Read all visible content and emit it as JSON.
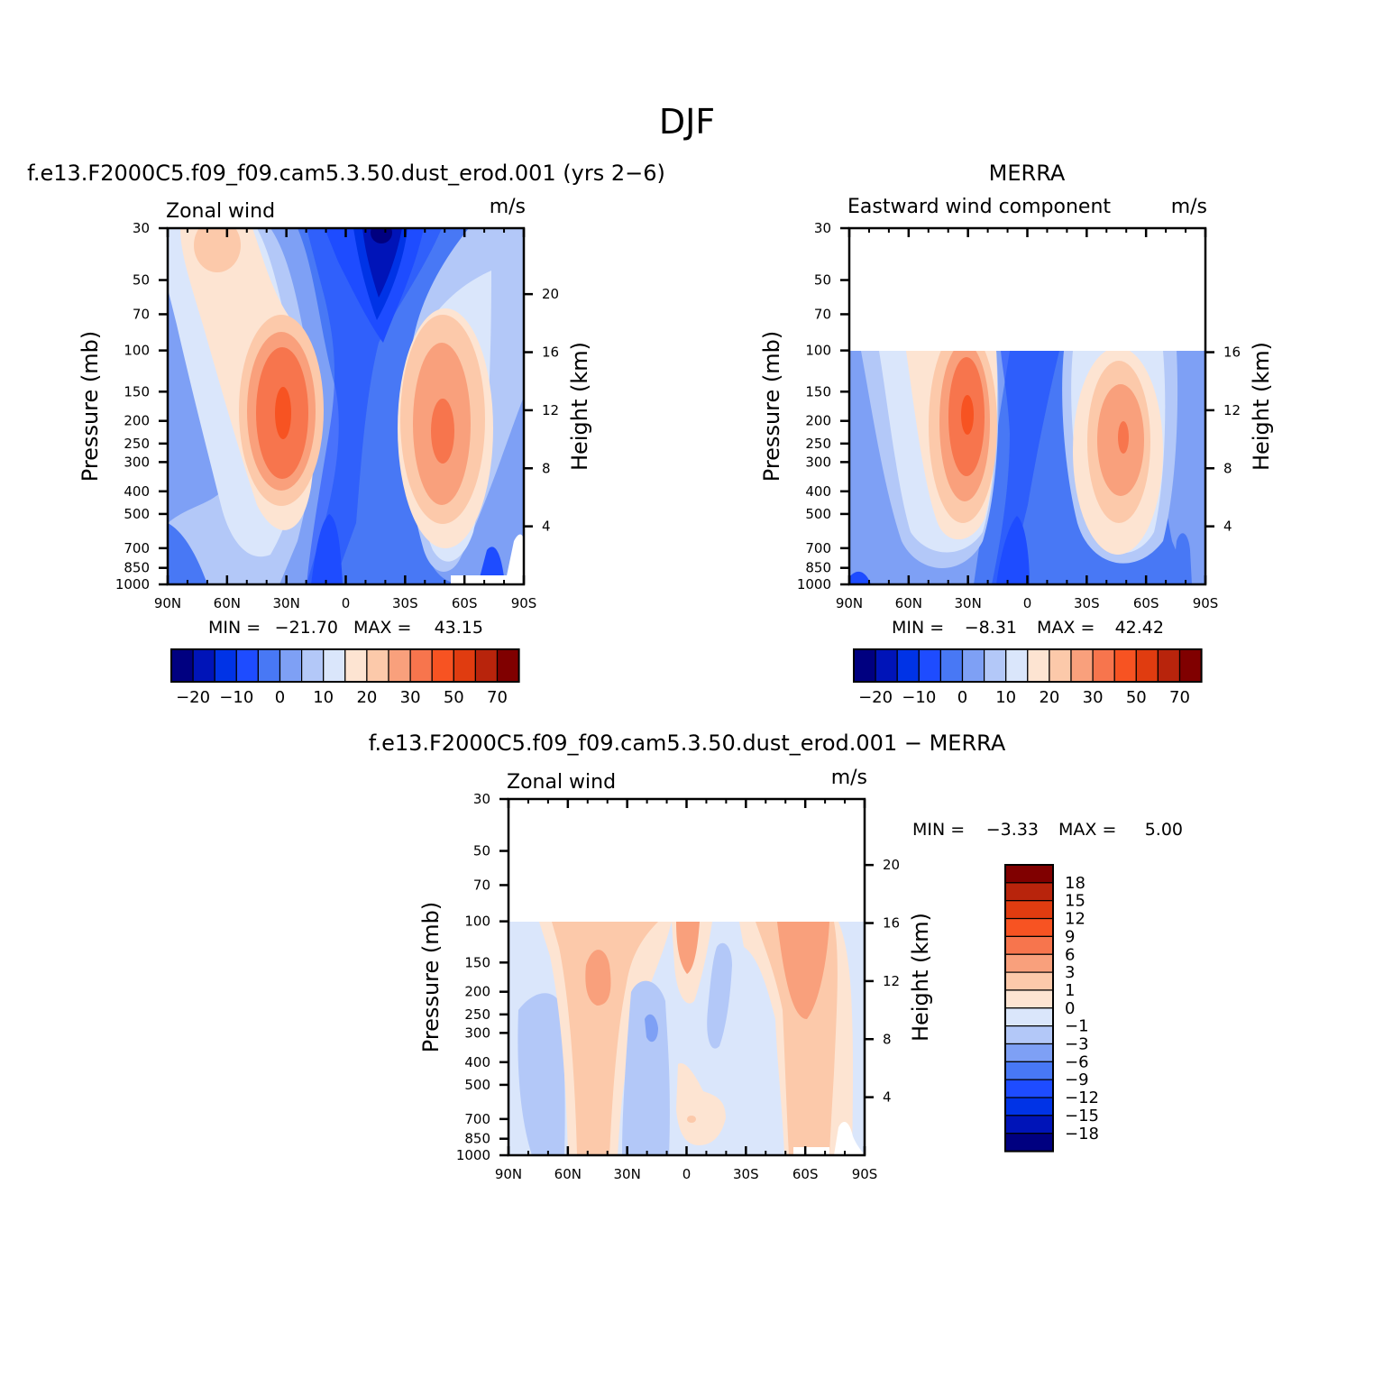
{
  "page": {
    "title": "DJF"
  },
  "colors": {
    "blues": [
      "#000080",
      "#0014b8",
      "#0033e6",
      "#1e4cff",
      "#4878f5",
      "#7ea0f5",
      "#b3c8f8",
      "#dae6fb"
    ],
    "reds": [
      "#fde4d2",
      "#fcc9aa",
      "#f9a07c",
      "#f7754d",
      "#f75322",
      "#e03c10",
      "#b8240c",
      "#800000"
    ]
  },
  "chart_data": [
    {
      "type": "heatmap",
      "panel_title": "f.e13.F2000C5.f09_f09.cam5.3.50.dust_erod.001 (yrs 2−6)",
      "left_string": "Zonal wind",
      "right_string": "m/s",
      "ylabel": "Pressure (mb)",
      "ylabel_right": "Height (km)",
      "x_ticks": [
        "90N",
        "60N",
        "30N",
        "0",
        "30S",
        "60S",
        "90S"
      ],
      "x_range": [
        90,
        -90
      ],
      "y_ticks": [
        "30",
        "50",
        "70",
        "100",
        "150",
        "200",
        "250",
        "300",
        "400",
        "500",
        "700",
        "850",
        "1000"
      ],
      "y_range_mb": [
        1000,
        30
      ],
      "height_ticks_km": [
        "20",
        "16",
        "12",
        "8",
        "4"
      ],
      "min": "−21.70",
      "max": "43.15",
      "min_label": "MIN =",
      "max_label": "MAX =",
      "colorbar": {
        "orientation": "horizontal",
        "levels": [
          "−20",
          "−10",
          "0",
          "10",
          "20",
          "30",
          "50",
          "70"
        ]
      },
      "features": [
        {
          "kind": "jet",
          "lat": 31,
          "p_mb": 190,
          "value": 43
        },
        {
          "kind": "jet",
          "lat": -49,
          "p_mb": 220,
          "value": 38
        },
        {
          "kind": "easterly",
          "lat": -18,
          "p_mb": 30,
          "value": -21
        }
      ]
    },
    {
      "type": "heatmap",
      "panel_title": "MERRA",
      "left_string": "Eastward wind component",
      "right_string": "m/s",
      "ylabel": "Pressure (mb)",
      "ylabel_right": "Height (km)",
      "x_ticks": [
        "90N",
        "60N",
        "30N",
        "0",
        "30S",
        "60S",
        "90S"
      ],
      "x_range": [
        90,
        -90
      ],
      "y_ticks": [
        "30",
        "50",
        "70",
        "100",
        "150",
        "200",
        "250",
        "300",
        "400",
        "500",
        "700",
        "850",
        "1000"
      ],
      "y_range_mb": [
        1000,
        30
      ],
      "data_top_mb": 100,
      "height_ticks_km": [
        "16",
        "12",
        "8",
        "4"
      ],
      "min": "−8.31",
      "max": "42.42",
      "min_label": "MIN =",
      "max_label": "MAX =",
      "colorbar": {
        "orientation": "horizontal",
        "levels": [
          "−20",
          "−10",
          "0",
          "10",
          "20",
          "30",
          "50",
          "70"
        ]
      },
      "features": [
        {
          "kind": "jet",
          "lat": 30,
          "p_mb": 190,
          "value": 42
        },
        {
          "kind": "jet",
          "lat": -47,
          "p_mb": 240,
          "value": 33
        }
      ]
    },
    {
      "type": "heatmap",
      "panel_title": "f.e13.F2000C5.f09_f09.cam5.3.50.dust_erod.001 − MERRA",
      "left_string": "Zonal wind",
      "right_string": "m/s",
      "ylabel": "Pressure (mb)",
      "ylabel_right": "Height (km)",
      "x_ticks": [
        "90N",
        "60N",
        "30N",
        "0",
        "30S",
        "60S",
        "90S"
      ],
      "x_range": [
        90,
        -90
      ],
      "y_ticks": [
        "30",
        "50",
        "70",
        "100",
        "150",
        "200",
        "250",
        "300",
        "400",
        "500",
        "700",
        "850",
        "1000"
      ],
      "y_range_mb": [
        1000,
        30
      ],
      "data_top_mb": 100,
      "height_ticks_km": [
        "20",
        "16",
        "12",
        "8",
        "4"
      ],
      "min": "−3.33",
      "max": "5.00",
      "min_label": "MIN =",
      "max_label": "MAX =",
      "colorbar": {
        "orientation": "vertical",
        "levels": [
          "18",
          "15",
          "12",
          "9",
          "6",
          "3",
          "1",
          "0",
          "−1",
          "−3",
          "−6",
          "−9",
          "−12",
          "−15",
          "−18"
        ]
      }
    }
  ]
}
